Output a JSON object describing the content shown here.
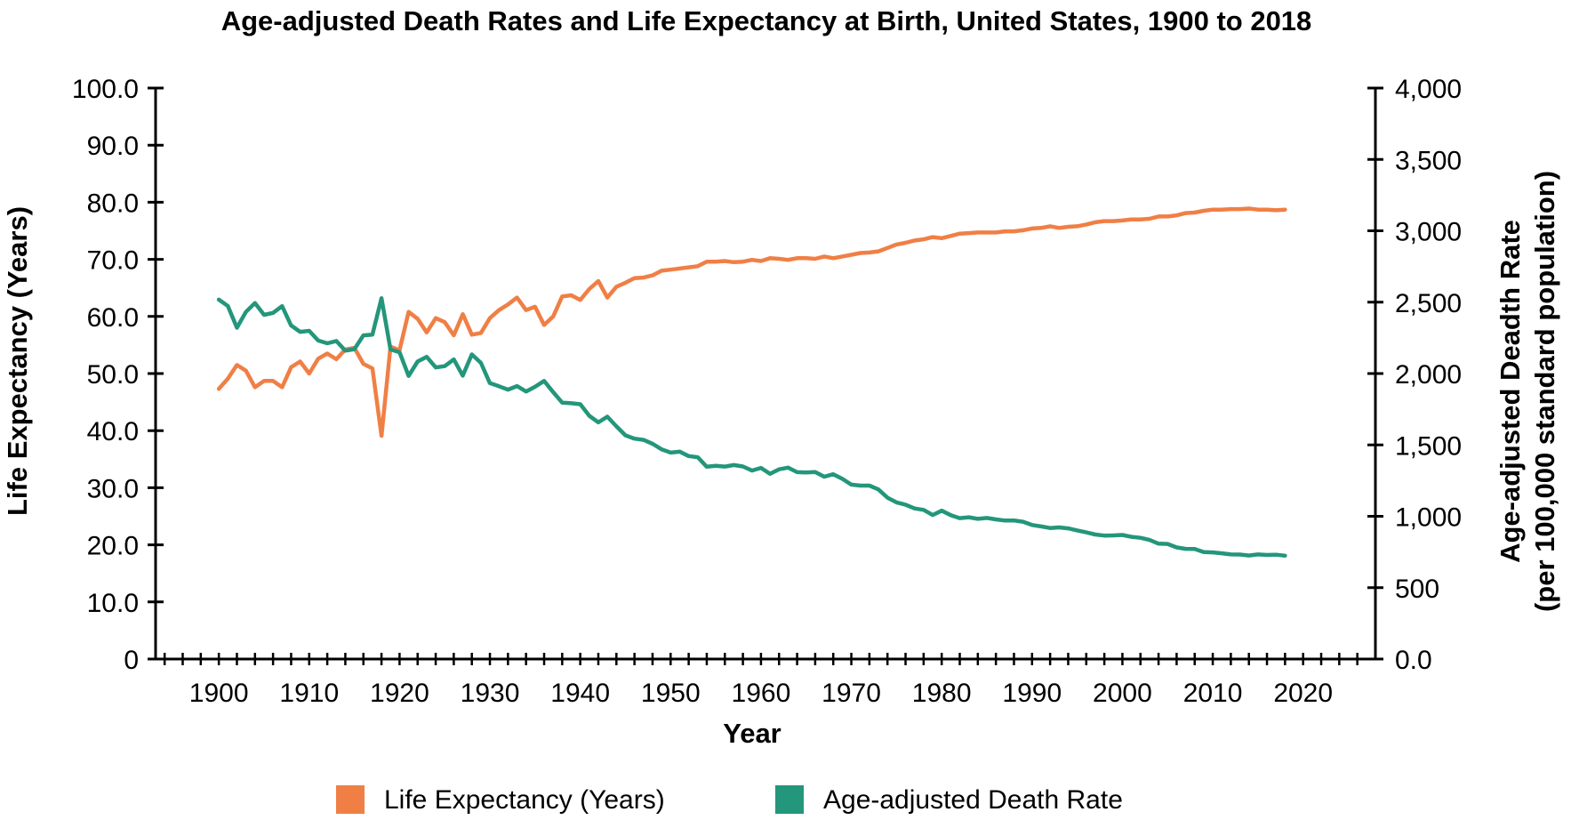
{
  "chart_data": {
    "type": "line",
    "title": "Age-adjusted Death Rates and Life Expectancy at Birth, United States, 1900 to 2018",
    "xlabel": "Year",
    "ylabel_left": "Life Expectancy (Years)",
    "ylabel_right_line1": "Age-adjusted Deadth Rate",
    "ylabel_right_line2": "(per 100,000 standard population)",
    "xlim": [
      1893,
      2028
    ],
    "ylim_left": [
      0,
      100
    ],
    "ylim_right": [
      0,
      4000
    ],
    "x_ticks": [
      "1900",
      "1910",
      "1920",
      "1930",
      "1940",
      "1950",
      "1960",
      "1970",
      "1980",
      "1990",
      "2000",
      "2010",
      "2020"
    ],
    "y_ticks_left": [
      "0",
      "10.0",
      "20.0",
      "30.0",
      "40.0",
      "50.0",
      "60.0",
      "70.0",
      "80.0",
      "90.0",
      "100.0"
    ],
    "y_ticks_right": [
      "0.0",
      "500",
      "1,000",
      "1,500",
      "2,000",
      "2,500",
      "3,000",
      "3,500",
      "4,000"
    ],
    "grid": false,
    "legend_position": "bottom-center",
    "series": [
      {
        "name": "Life Expectancy (Years)",
        "axis": "left",
        "color": "#f07f45",
        "x": [
          1900,
          1901,
          1902,
          1903,
          1904,
          1905,
          1906,
          1907,
          1908,
          1909,
          1910,
          1911,
          1912,
          1913,
          1914,
          1915,
          1916,
          1917,
          1918,
          1919,
          1920,
          1921,
          1922,
          1923,
          1924,
          1925,
          1926,
          1927,
          1928,
          1929,
          1930,
          1931,
          1932,
          1933,
          1934,
          1935,
          1936,
          1937,
          1938,
          1939,
          1940,
          1941,
          1942,
          1943,
          1944,
          1945,
          1946,
          1947,
          1948,
          1949,
          1950,
          1951,
          1952,
          1953,
          1954,
          1955,
          1956,
          1957,
          1958,
          1959,
          1960,
          1961,
          1962,
          1963,
          1964,
          1965,
          1966,
          1967,
          1968,
          1969,
          1970,
          1971,
          1972,
          1973,
          1974,
          1975,
          1976,
          1977,
          1978,
          1979,
          1980,
          1981,
          1982,
          1983,
          1984,
          1985,
          1986,
          1987,
          1988,
          1989,
          1990,
          1991,
          1992,
          1993,
          1994,
          1995,
          1996,
          1997,
          1998,
          1999,
          2000,
          2001,
          2002,
          2003,
          2004,
          2005,
          2006,
          2007,
          2008,
          2009,
          2010,
          2011,
          2012,
          2013,
          2014,
          2015,
          2016,
          2017,
          2018
        ],
        "values": [
          47.3,
          49.1,
          51.5,
          50.5,
          47.6,
          48.7,
          48.7,
          47.6,
          51.1,
          52.1,
          50.0,
          52.6,
          53.5,
          52.5,
          54.2,
          54.5,
          51.7,
          50.9,
          39.1,
          54.7,
          54.1,
          60.8,
          59.6,
          57.2,
          59.7,
          59.0,
          56.7,
          60.4,
          56.8,
          57.1,
          59.7,
          61.1,
          62.1,
          63.3,
          61.1,
          61.7,
          58.5,
          60.0,
          63.5,
          63.7,
          62.9,
          64.8,
          66.2,
          63.3,
          65.2,
          65.9,
          66.7,
          66.8,
          67.2,
          68.0,
          68.2,
          68.4,
          68.6,
          68.8,
          69.6,
          69.6,
          69.7,
          69.5,
          69.6,
          69.9,
          69.7,
          70.2,
          70.1,
          69.9,
          70.2,
          70.2,
          70.1,
          70.5,
          70.2,
          70.5,
          70.8,
          71.1,
          71.2,
          71.4,
          72.0,
          72.6,
          72.9,
          73.3,
          73.5,
          73.9,
          73.7,
          74.1,
          74.5,
          74.6,
          74.7,
          74.7,
          74.7,
          74.9,
          74.9,
          75.1,
          75.4,
          75.5,
          75.8,
          75.5,
          75.7,
          75.8,
          76.1,
          76.5,
          76.7,
          76.7,
          76.8,
          77.0,
          77.0,
          77.1,
          77.5,
          77.5,
          77.7,
          78.1,
          78.2,
          78.5,
          78.7,
          78.7,
          78.8,
          78.8,
          78.9,
          78.7,
          78.7,
          78.6,
          78.7
        ]
      },
      {
        "name": "Age-adjusted Death Rate",
        "axis": "right",
        "color": "#23967b",
        "x": [
          1900,
          1901,
          1902,
          1903,
          1904,
          1905,
          1906,
          1907,
          1908,
          1909,
          1910,
          1911,
          1912,
          1913,
          1914,
          1915,
          1916,
          1917,
          1918,
          1919,
          1920,
          1921,
          1922,
          1923,
          1924,
          1925,
          1926,
          1927,
          1928,
          1929,
          1930,
          1931,
          1932,
          1933,
          1934,
          1935,
          1936,
          1937,
          1938,
          1939,
          1940,
          1941,
          1942,
          1943,
          1944,
          1945,
          1946,
          1947,
          1948,
          1949,
          1950,
          1951,
          1952,
          1953,
          1954,
          1955,
          1956,
          1957,
          1958,
          1959,
          1960,
          1961,
          1962,
          1963,
          1964,
          1965,
          1966,
          1967,
          1968,
          1969,
          1970,
          1971,
          1972,
          1973,
          1974,
          1975,
          1976,
          1977,
          1978,
          1979,
          1980,
          1981,
          1982,
          1983,
          1984,
          1985,
          1986,
          1987,
          1988,
          1989,
          1990,
          1991,
          1992,
          1993,
          1994,
          1995,
          1996,
          1997,
          1998,
          1999,
          2000,
          2001,
          2002,
          2003,
          2004,
          2005,
          2006,
          2007,
          2008,
          2009,
          2010,
          2011,
          2012,
          2013,
          2014,
          2015,
          2016,
          2017,
          2018
        ],
        "values": [
          2518,
          2473,
          2321,
          2432,
          2494,
          2411,
          2425,
          2472,
          2337,
          2292,
          2299,
          2231,
          2212,
          2228,
          2160,
          2171,
          2267,
          2273,
          2528,
          2169,
          2149,
          1983,
          2084,
          2117,
          2043,
          2052,
          2099,
          1985,
          2134,
          2075,
          1933,
          1911,
          1887,
          1912,
          1874,
          1907,
          1948,
          1870,
          1796,
          1792,
          1785,
          1704,
          1658,
          1698,
          1630,
          1567,
          1544,
          1535,
          1508,
          1469,
          1446,
          1453,
          1422,
          1414,
          1347,
          1353,
          1348,
          1359,
          1349,
          1320,
          1339,
          1297,
          1329,
          1341,
          1309,
          1307,
          1310,
          1277,
          1295,
          1262,
          1222,
          1215,
          1215,
          1188,
          1130,
          1097,
          1081,
          1055,
          1045,
          1009,
          1039,
          1008,
          987,
          993,
          982,
          988,
          978,
          970,
          971,
          962,
          939,
          929,
          918,
          922,
          915,
          901,
          887,
          872,
          865,
          866,
          869,
          856,
          849,
          834,
          808,
          806,
          782,
          772,
          771,
          749,
          747,
          741,
          733,
          732,
          725,
          733,
          729,
          731,
          724
        ]
      }
    ]
  }
}
